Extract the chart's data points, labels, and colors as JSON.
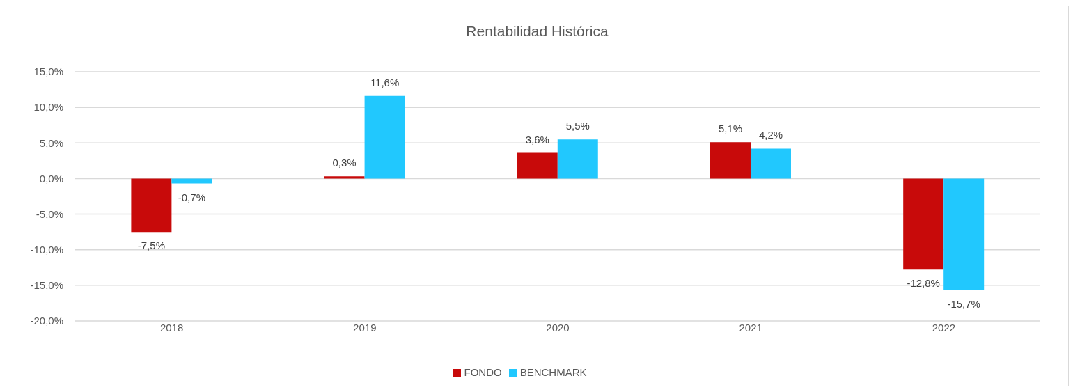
{
  "chart_data": {
    "type": "bar",
    "title": "Rentabilidad Histórica",
    "categories": [
      "2018",
      "2019",
      "2020",
      "2021",
      "2022"
    ],
    "series": [
      {
        "name": "FONDO",
        "color": "#c80a0a",
        "values": [
          -7.5,
          0.3,
          3.6,
          5.1,
          -12.8
        ],
        "value_labels": [
          "-7,5%",
          "0,3%",
          "3,6%",
          "5,1%",
          "-12,8%"
        ]
      },
      {
        "name": "BENCHMARK",
        "color": "#21c8fe",
        "values": [
          -0.7,
          11.6,
          5.5,
          4.2,
          -15.7
        ],
        "value_labels": [
          "-0,7%",
          "11,6%",
          "5,5%",
          "4,2%",
          "-15,7%"
        ]
      }
    ],
    "ylim": [
      -20,
      15
    ],
    "yticks": [
      {
        "value": -20,
        "label": "-20,0%"
      },
      {
        "value": -15,
        "label": "-15,0%"
      },
      {
        "value": -10,
        "label": "-10,0%"
      },
      {
        "value": -5,
        "label": "-5,0%"
      },
      {
        "value": 0,
        "label": "0,0%"
      },
      {
        "value": 5,
        "label": "5,0%"
      },
      {
        "value": 10,
        "label": "10,0%"
      },
      {
        "value": 15,
        "label": "15,0%"
      }
    ],
    "grid": "y",
    "legend": "bottom"
  }
}
